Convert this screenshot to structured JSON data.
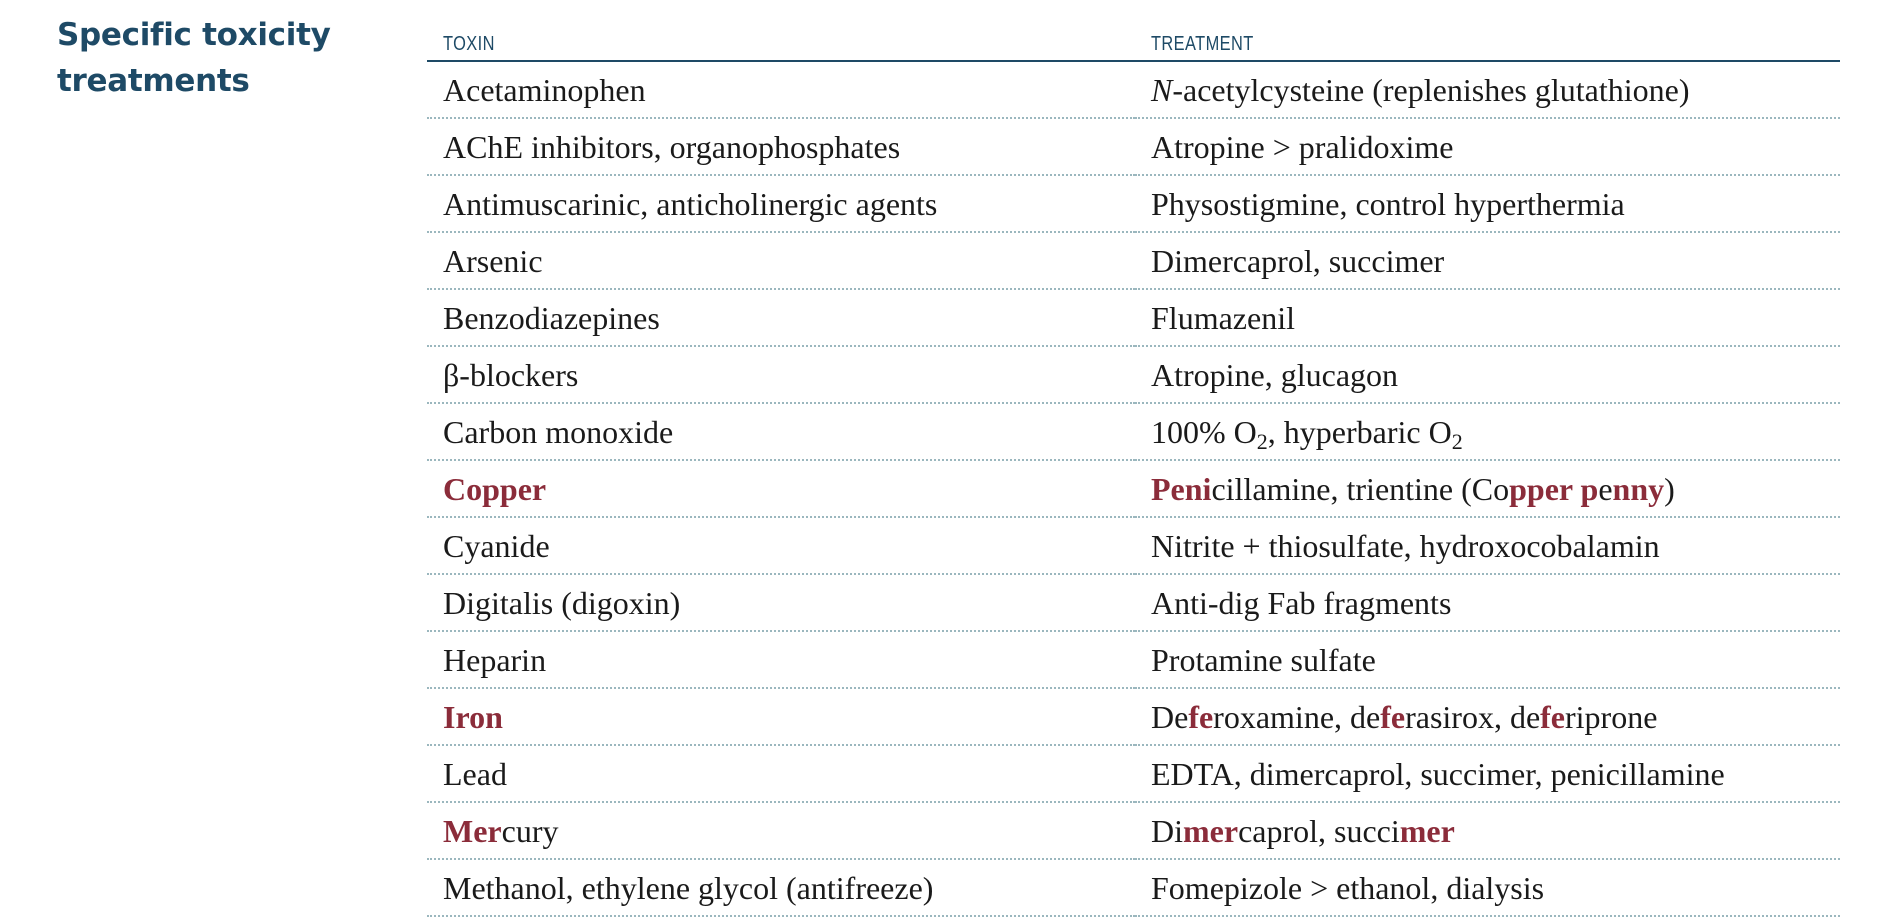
{
  "section": {
    "title_line1": "Specific toxicity",
    "title_line2": "treatments"
  },
  "table": {
    "headers": {
      "toxin": "TOXIN",
      "treatment": "TREATMENT"
    },
    "rows": [
      {
        "toxin": "Acetaminophen",
        "treatment": "N-acetylcysteine (replenishes glutathione)"
      },
      {
        "toxin": "AChE inhibitors, organophosphates",
        "treatment": "Atropine > pralidoxime"
      },
      {
        "toxin": "Antimuscarinic, anticholinergic agents",
        "treatment": "Physostigmine, control hyperthermia"
      },
      {
        "toxin": "Arsenic",
        "treatment": "Dimercaprol, succimer"
      },
      {
        "toxin": "Benzodiazepines",
        "treatment": "Flumazenil"
      },
      {
        "toxin": "β-blockers",
        "treatment": "Atropine, glucagon"
      },
      {
        "toxin": "Carbon monoxide",
        "treatment": "100% O2, hyperbaric O2"
      },
      {
        "toxin": "Copper",
        "treatment": "Penicillamine, trientine (Copper penny)"
      },
      {
        "toxin": "Cyanide",
        "treatment": "Nitrite + thiosulfate, hydroxocobalamin"
      },
      {
        "toxin": "Digitalis (digoxin)",
        "treatment": "Anti-dig Fab fragments"
      },
      {
        "toxin": "Heparin",
        "treatment": "Protamine sulfate"
      },
      {
        "toxin": "Iron",
        "treatment": "Deferoxamine, deferasirox, deferiprone"
      },
      {
        "toxin": "Lead",
        "treatment": "EDTA, dimercaprol, succimer, penicillamine"
      },
      {
        "toxin": "Mercury",
        "treatment": "Dimercaprol, succimer"
      },
      {
        "toxin": "Methanol, ethylene glycol (antifreeze)",
        "treatment": "Fomepizole > ethanol, dialysis"
      }
    ]
  },
  "colors": {
    "heading": "#1e4a66",
    "highlight": "#8b2c3a",
    "row_divider": "#9bb7be",
    "body_text": "#1a1a1a"
  }
}
